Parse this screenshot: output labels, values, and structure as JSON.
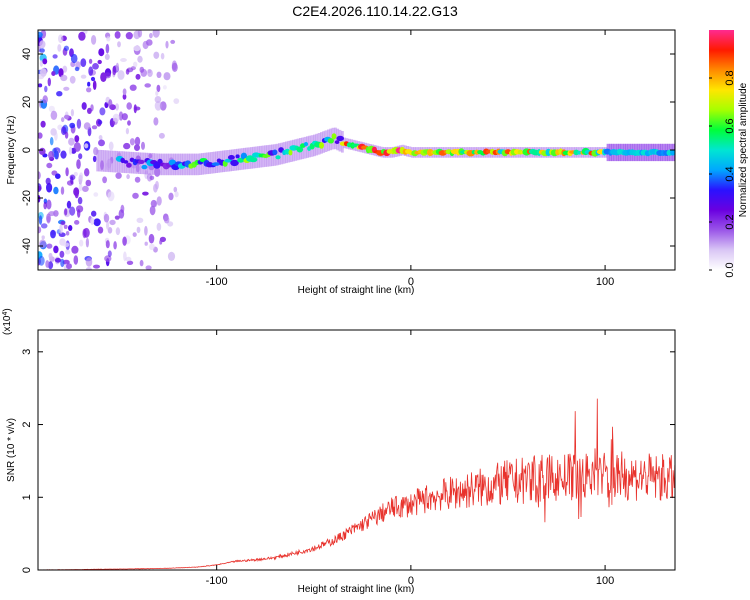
{
  "title": "C2E4.2026.110.14.22.G13",
  "colors": {
    "snr_line": "#e8322c",
    "colormap": [
      "#ffffff",
      "#d9c6f5",
      "#9a55e8",
      "#6a00e0",
      "#2a12ff",
      "#00a7ff",
      "#00e6d2",
      "#00ff3a",
      "#a6ff00",
      "#ffe600",
      "#ff8a00",
      "#ff1a00",
      "#ff2a90"
    ]
  },
  "chart_data": [
    {
      "type": "heatmap",
      "xlabel": "Height of straight line (km)",
      "ylabel": "Frequency (Hz)",
      "xlim": [
        -192,
        136
      ],
      "ylim": [
        -50,
        50
      ],
      "xticks": [
        -100,
        0,
        100
      ],
      "yticks": [
        -40,
        -20,
        0,
        20,
        40
      ],
      "grid": false,
      "colorbar": {
        "label": "Normalized spectral amplitude",
        "range": [
          0,
          1
        ],
        "ticks": [
          0,
          0.2,
          0.4,
          0.6,
          0.8
        ],
        "tick_labels": [
          "0.0",
          "0.2",
          "0.4",
          "0.6",
          "0.8"
        ]
      },
      "ridge": {
        "x": [
          -190,
          -170,
          -150,
          -130,
          -110,
          -100,
          -90,
          -80,
          -70,
          -60,
          -50,
          -40,
          -35,
          -30,
          -25,
          -20,
          -15,
          -10,
          -5,
          0,
          10,
          20,
          40,
          60,
          80,
          100,
          136
        ],
        "y": [
          -3,
          -4,
          -5,
          -6,
          -6,
          -5,
          -4,
          -3,
          -2,
          0,
          2,
          5,
          3,
          2,
          1,
          0,
          -1,
          -1,
          0,
          -1,
          -1,
          -1,
          -1,
          -1,
          -1,
          -1,
          -1
        ]
      },
      "scatter_region": {
        "x_range": [
          -192,
          -120
        ],
        "y_range": [
          -50,
          50
        ],
        "amplitude": "0.1-0.3"
      }
    },
    {
      "type": "line",
      "ylabel": "SNR (10 * v/v)",
      "y_multiplier": "(x10^4)",
      "xlabel": "Height of straight line (km)",
      "xlim": [
        -192,
        136
      ],
      "ylim": [
        0,
        3.3
      ],
      "xticks": [
        -100,
        0,
        100
      ],
      "yticks": [
        0,
        1,
        2,
        3
      ],
      "grid": false,
      "series": [
        {
          "x": [
            -192,
            -160,
            -130,
            -110,
            -100,
            -90,
            -80,
            -70,
            -60,
            -50,
            -40,
            -30,
            -20,
            -10,
            0,
            10,
            20,
            30,
            40,
            50,
            60,
            70,
            80,
            90,
            95,
            100,
            103,
            106,
            110,
            120,
            136
          ],
          "values": [
            0,
            0.01,
            0.02,
            0.04,
            0.07,
            0.12,
            0.14,
            0.17,
            0.23,
            0.3,
            0.4,
            0.55,
            0.7,
            0.85,
            0.9,
            1.0,
            1.05,
            1.1,
            1.15,
            1.2,
            1.24,
            1.26,
            1.27,
            1.28,
            1.35,
            1.3,
            1.05,
            1.3,
            1.3,
            1.28,
            1.25
          ]
        }
      ]
    }
  ]
}
